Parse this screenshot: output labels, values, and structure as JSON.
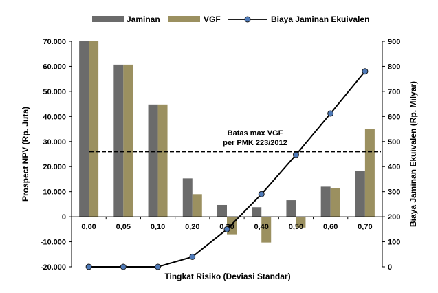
{
  "chart_data": {
    "type": "bar",
    "categories": [
      "0,00",
      "0,05",
      "0,10",
      "0,20",
      "0,30",
      "0,40",
      "0,50",
      "0,60",
      "0,70"
    ],
    "xlabel": "Tingkat Risiko (Deviasi Standar)",
    "ylabel": "Prospect NPV (Rp. Juta)",
    "y2label": "Biaya Jaminan Ekuivalen (Rp. Milyar)",
    "ylim": [
      -20000,
      70000
    ],
    "y2lim": [
      0,
      900
    ],
    "yticks": [
      "-20.000",
      "-10.000",
      "0",
      "10.000",
      "20.000",
      "30.000",
      "40.000",
      "50.000",
      "60.000",
      "70.000"
    ],
    "y2ticks": [
      "0",
      "100",
      "200",
      "300",
      "400",
      "500",
      "600",
      "700",
      "800",
      "900"
    ],
    "series": [
      {
        "name": "Jaminan",
        "type": "bar",
        "axis": "left",
        "color": "#6b6b6b",
        "values": [
          70000,
          60700,
          44800,
          15300,
          4700,
          3800,
          6600,
          12000,
          18300
        ]
      },
      {
        "name": "VGF",
        "type": "bar",
        "axis": "left",
        "color": "#9b9060",
        "values": [
          70000,
          60700,
          44800,
          9000,
          -7000,
          -10300,
          -4300,
          11300,
          35100
        ]
      },
      {
        "name": "Biaya Jaminan Ekuivalen",
        "type": "line",
        "axis": "right",
        "color": "#000000",
        "marker_color": "#4f7ab8",
        "values": [
          0,
          0,
          0,
          40,
          150,
          290,
          447,
          612,
          780
        ]
      }
    ],
    "reference_line": {
      "value": 26000,
      "axis": "left",
      "label_line1": "Batas max VGF",
      "label_line2": "per PMK 223/2012"
    },
    "legend_position": "top",
    "grid": false
  }
}
